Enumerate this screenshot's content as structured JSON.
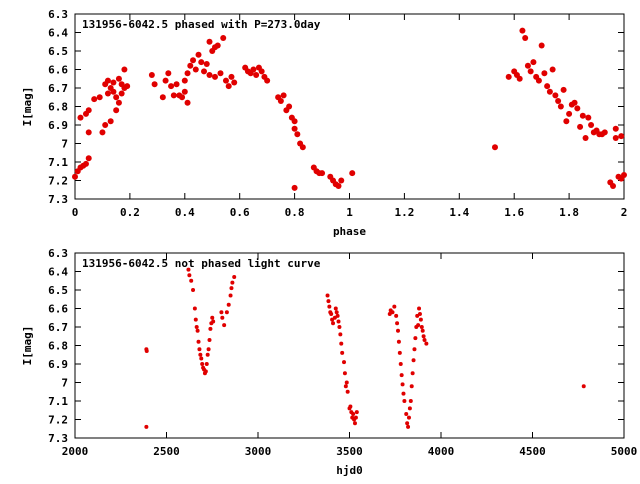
{
  "chart_data": [
    {
      "type": "scatter",
      "title": "131956-6042.5 phased with P=273.0day",
      "xlabel": "phase",
      "ylabel": "I[mag]",
      "xlim": [
        0,
        2
      ],
      "ylim": [
        6.3,
        7.3
      ],
      "y_inverted": true,
      "x_ticks": [
        "0",
        "0.2",
        "0.4",
        "0.6",
        "0.8",
        "1",
        "1.2",
        "1.4",
        "1.6",
        "1.8",
        "2"
      ],
      "y_ticks": [
        "6.3",
        "6.4",
        "6.5",
        "6.6",
        "6.7",
        "6.8",
        "6.9",
        "7",
        "7.1",
        "7.2",
        "7.3"
      ],
      "marker_color": "#e00000",
      "points": [
        [
          0.0,
          7.18
        ],
        [
          0.01,
          7.15
        ],
        [
          0.02,
          7.13
        ],
        [
          0.03,
          7.12
        ],
        [
          0.04,
          7.11
        ],
        [
          0.05,
          7.08
        ],
        [
          0.02,
          6.86
        ],
        [
          0.04,
          6.84
        ],
        [
          0.05,
          6.82
        ],
        [
          0.05,
          6.94
        ],
        [
          0.07,
          6.76
        ],
        [
          0.09,
          6.75
        ],
        [
          0.1,
          6.94
        ],
        [
          0.11,
          6.9
        ],
        [
          0.11,
          6.68
        ],
        [
          0.12,
          6.66
        ],
        [
          0.12,
          6.73
        ],
        [
          0.13,
          6.88
        ],
        [
          0.13,
          6.7
        ],
        [
          0.14,
          6.72
        ],
        [
          0.14,
          6.67
        ],
        [
          0.15,
          6.75
        ],
        [
          0.15,
          6.82
        ],
        [
          0.16,
          6.78
        ],
        [
          0.16,
          6.65
        ],
        [
          0.17,
          6.73
        ],
        [
          0.17,
          6.68
        ],
        [
          0.18,
          6.7
        ],
        [
          0.18,
          6.6
        ],
        [
          0.19,
          6.69
        ],
        [
          0.28,
          6.63
        ],
        [
          0.29,
          6.68
        ],
        [
          0.32,
          6.75
        ],
        [
          0.33,
          6.66
        ],
        [
          0.34,
          6.62
        ],
        [
          0.35,
          6.69
        ],
        [
          0.36,
          6.74
        ],
        [
          0.37,
          6.68
        ],
        [
          0.38,
          6.74
        ],
        [
          0.39,
          6.75
        ],
        [
          0.4,
          6.72
        ],
        [
          0.4,
          6.66
        ],
        [
          0.41,
          6.62
        ],
        [
          0.41,
          6.78
        ],
        [
          0.42,
          6.58
        ],
        [
          0.43,
          6.55
        ],
        [
          0.44,
          6.6
        ],
        [
          0.45,
          6.52
        ],
        [
          0.46,
          6.56
        ],
        [
          0.47,
          6.61
        ],
        [
          0.48,
          6.57
        ],
        [
          0.49,
          6.45
        ],
        [
          0.49,
          6.63
        ],
        [
          0.5,
          6.5
        ],
        [
          0.51,
          6.48
        ],
        [
          0.51,
          6.64
        ],
        [
          0.52,
          6.47
        ],
        [
          0.53,
          6.62
        ],
        [
          0.54,
          6.43
        ],
        [
          0.55,
          6.66
        ],
        [
          0.56,
          6.69
        ],
        [
          0.57,
          6.64
        ],
        [
          0.58,
          6.67
        ],
        [
          0.62,
          6.59
        ],
        [
          0.63,
          6.61
        ],
        [
          0.64,
          6.62
        ],
        [
          0.65,
          6.6
        ],
        [
          0.66,
          6.63
        ],
        [
          0.67,
          6.59
        ],
        [
          0.68,
          6.61
        ],
        [
          0.69,
          6.64
        ],
        [
          0.7,
          6.66
        ],
        [
          0.74,
          6.75
        ],
        [
          0.75,
          6.77
        ],
        [
          0.76,
          6.74
        ],
        [
          0.77,
          6.82
        ],
        [
          0.78,
          6.8
        ],
        [
          0.79,
          6.86
        ],
        [
          0.8,
          6.88
        ],
        [
          0.8,
          6.92
        ],
        [
          0.81,
          6.95
        ],
        [
          0.82,
          7.0
        ],
        [
          0.83,
          7.02
        ],
        [
          0.8,
          7.24
        ],
        [
          0.87,
          7.13
        ],
        [
          0.88,
          7.15
        ],
        [
          0.89,
          7.16
        ],
        [
          0.9,
          7.16
        ],
        [
          0.93,
          7.18
        ],
        [
          0.94,
          7.2
        ],
        [
          0.95,
          7.22
        ],
        [
          0.96,
          7.23
        ],
        [
          0.97,
          7.2
        ],
        [
          1.01,
          7.16
        ],
        [
          1.53,
          7.02
        ],
        [
          1.58,
          6.64
        ],
        [
          1.6,
          6.61
        ],
        [
          1.61,
          6.63
        ],
        [
          1.62,
          6.65
        ],
        [
          1.63,
          6.39
        ],
        [
          1.64,
          6.43
        ],
        [
          1.65,
          6.58
        ],
        [
          1.66,
          6.61
        ],
        [
          1.67,
          6.56
        ],
        [
          1.68,
          6.64
        ],
        [
          1.69,
          6.66
        ],
        [
          1.7,
          6.47
        ],
        [
          1.71,
          6.62
        ],
        [
          1.72,
          6.69
        ],
        [
          1.73,
          6.72
        ],
        [
          1.74,
          6.6
        ],
        [
          1.75,
          6.74
        ],
        [
          1.76,
          6.77
        ],
        [
          1.77,
          6.8
        ],
        [
          1.78,
          6.71
        ],
        [
          1.79,
          6.88
        ],
        [
          1.8,
          6.84
        ],
        [
          1.81,
          6.79
        ],
        [
          1.82,
          6.78
        ],
        [
          1.83,
          6.81
        ],
        [
          1.84,
          6.91
        ],
        [
          1.85,
          6.85
        ],
        [
          1.86,
          6.97
        ],
        [
          1.87,
          6.86
        ],
        [
          1.88,
          6.9
        ],
        [
          1.89,
          6.94
        ],
        [
          1.9,
          6.93
        ],
        [
          1.91,
          6.95
        ],
        [
          1.92,
          6.95
        ],
        [
          1.93,
          6.94
        ],
        [
          1.95,
          7.21
        ],
        [
          1.96,
          7.23
        ],
        [
          1.97,
          6.92
        ],
        [
          1.97,
          6.97
        ],
        [
          1.98,
          7.18
        ],
        [
          1.99,
          7.19
        ],
        [
          1.99,
          6.96
        ],
        [
          2.0,
          7.17
        ]
      ]
    },
    {
      "type": "scatter",
      "title": "131956-6042.5 not phased light curve",
      "xlabel": "hjd0",
      "ylabel": "I[mag]",
      "xlim": [
        2000,
        5000
      ],
      "ylim": [
        6.3,
        7.3
      ],
      "y_inverted": true,
      "x_ticks": [
        "2000",
        "2500",
        "3000",
        "3500",
        "4000",
        "4500",
        "5000"
      ],
      "y_ticks": [
        "6.3",
        "6.4",
        "6.5",
        "6.6",
        "6.7",
        "6.8",
        "6.9",
        "7",
        "7.1",
        "7.2",
        "7.3"
      ],
      "marker_color": "#e00000",
      "points": [
        [
          2390,
          6.82
        ],
        [
          2392,
          6.83
        ],
        [
          2390,
          7.24
        ],
        [
          2620,
          6.39
        ],
        [
          2625,
          6.42
        ],
        [
          2635,
          6.45
        ],
        [
          2645,
          6.5
        ],
        [
          2655,
          6.6
        ],
        [
          2660,
          6.66
        ],
        [
          2665,
          6.7
        ],
        [
          2670,
          6.72
        ],
        [
          2675,
          6.78
        ],
        [
          2680,
          6.82
        ],
        [
          2685,
          6.85
        ],
        [
          2690,
          6.87
        ],
        [
          2695,
          6.9
        ],
        [
          2700,
          6.92
        ],
        [
          2705,
          6.93
        ],
        [
          2710,
          6.95
        ],
        [
          2715,
          6.94
        ],
        [
          2720,
          6.9
        ],
        [
          2725,
          6.85
        ],
        [
          2730,
          6.82
        ],
        [
          2735,
          6.77
        ],
        [
          2740,
          6.71
        ],
        [
          2745,
          6.68
        ],
        [
          2750,
          6.65
        ],
        [
          2755,
          6.67
        ],
        [
          2800,
          6.62
        ],
        [
          2805,
          6.65
        ],
        [
          2815,
          6.69
        ],
        [
          2830,
          6.62
        ],
        [
          2840,
          6.58
        ],
        [
          2850,
          6.53
        ],
        [
          2855,
          6.49
        ],
        [
          2860,
          6.46
        ],
        [
          2870,
          6.43
        ],
        [
          3380,
          6.53
        ],
        [
          3385,
          6.56
        ],
        [
          3390,
          6.59
        ],
        [
          3395,
          6.62
        ],
        [
          3400,
          6.63
        ],
        [
          3405,
          6.66
        ],
        [
          3410,
          6.68
        ],
        [
          3420,
          6.65
        ],
        [
          3425,
          6.6
        ],
        [
          3430,
          6.62
        ],
        [
          3435,
          6.64
        ],
        [
          3440,
          6.67
        ],
        [
          3445,
          6.7
        ],
        [
          3450,
          6.74
        ],
        [
          3455,
          6.79
        ],
        [
          3460,
          6.84
        ],
        [
          3470,
          6.89
        ],
        [
          3475,
          6.95
        ],
        [
          3480,
          7.02
        ],
        [
          3485,
          7.0
        ],
        [
          3490,
          7.05
        ],
        [
          3500,
          7.14
        ],
        [
          3505,
          7.13
        ],
        [
          3510,
          7.16
        ],
        [
          3515,
          7.19
        ],
        [
          3520,
          7.17
        ],
        [
          3525,
          7.2
        ],
        [
          3530,
          7.22
        ],
        [
          3535,
          7.19
        ],
        [
          3540,
          7.16
        ],
        [
          3720,
          6.63
        ],
        [
          3725,
          6.61
        ],
        [
          3735,
          6.62
        ],
        [
          3745,
          6.59
        ],
        [
          3755,
          6.64
        ],
        [
          3760,
          6.68
        ],
        [
          3765,
          6.72
        ],
        [
          3770,
          6.78
        ],
        [
          3775,
          6.84
        ],
        [
          3780,
          6.9
        ],
        [
          3785,
          6.96
        ],
        [
          3790,
          7.01
        ],
        [
          3795,
          7.06
        ],
        [
          3800,
          7.1
        ],
        [
          3810,
          7.17
        ],
        [
          3815,
          7.22
        ],
        [
          3820,
          7.24
        ],
        [
          3825,
          7.19
        ],
        [
          3830,
          7.14
        ],
        [
          3835,
          7.1
        ],
        [
          3840,
          7.02
        ],
        [
          3845,
          6.95
        ],
        [
          3850,
          6.88
        ],
        [
          3855,
          6.82
        ],
        [
          3860,
          6.76
        ],
        [
          3865,
          6.7
        ],
        [
          3870,
          6.64
        ],
        [
          3875,
          6.69
        ],
        [
          3880,
          6.6
        ],
        [
          3885,
          6.63
        ],
        [
          3890,
          6.66
        ],
        [
          3895,
          6.7
        ],
        [
          3900,
          6.72
        ],
        [
          3905,
          6.75
        ],
        [
          3910,
          6.77
        ],
        [
          3920,
          6.79
        ],
        [
          4780,
          7.02
        ]
      ]
    }
  ]
}
